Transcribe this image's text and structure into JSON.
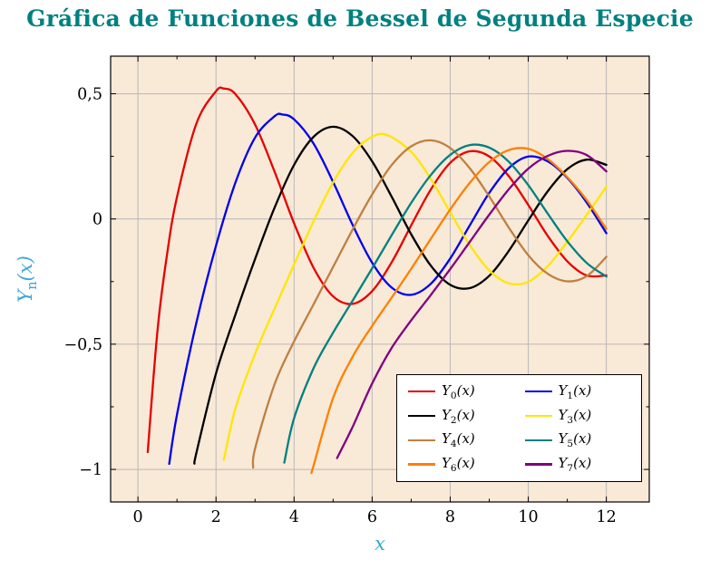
{
  "title": "Gráfica de Funciones de Bessel de Segunda Especie",
  "colors": {
    "title": "#008080",
    "axis_label": "#3fa7d6",
    "plot_background": "#f9e9d7",
    "grid": "#b8b8b8",
    "frame": "#000000",
    "legend_background": "#ffffff"
  },
  "chart_data": {
    "type": "line",
    "title": "Gráfica de Funciones de Bessel de Segunda Especie",
    "xlabel": "x",
    "ylabel": "Yn(x)",
    "ylabel_parts": {
      "base": "Y",
      "sub": "n",
      "arg": "(x)"
    },
    "xlim": [
      -0.7,
      13.1
    ],
    "ylim": [
      -1.13,
      0.65
    ],
    "grid": true,
    "legend_position": "bottom-right",
    "xticks": [
      {
        "value": 0,
        "label": "0"
      },
      {
        "value": 2,
        "label": "2"
      },
      {
        "value": 4,
        "label": "4"
      },
      {
        "value": 6,
        "label": "6"
      },
      {
        "value": 8,
        "label": "8"
      },
      {
        "value": 10,
        "label": "10"
      },
      {
        "value": 12,
        "label": "12"
      }
    ],
    "yticks": [
      {
        "value": 0.5,
        "label": "0,5"
      },
      {
        "value": 0,
        "label": "0"
      },
      {
        "value": -0.5,
        "label": "−0,5"
      },
      {
        "value": -1,
        "label": "−1"
      }
    ],
    "minor_xticks": [
      1,
      3,
      5,
      7,
      9,
      11
    ],
    "minor_yticks": [
      0.25,
      -0.25,
      -0.75
    ],
    "series": [
      {
        "name": "Y0(x)",
        "label_base": "Y",
        "label_sub": "0",
        "label_arg": "(x)",
        "color": "#e60000",
        "points": [
          [
            0.25,
            -0.931
          ],
          [
            0.5,
            -0.445
          ],
          [
            0.75,
            -0.137
          ],
          [
            1,
            0.088
          ],
          [
            1.5,
            0.382
          ],
          [
            2,
            0.51
          ],
          [
            2.2,
            0.521
          ],
          [
            2.5,
            0.498
          ],
          [
            3,
            0.377
          ],
          [
            3.5,
            0.189
          ],
          [
            4,
            -0.017
          ],
          [
            4.5,
            -0.195
          ],
          [
            5,
            -0.309
          ],
          [
            5.5,
            -0.339
          ],
          [
            6,
            -0.288
          ],
          [
            6.5,
            -0.173
          ],
          [
            7,
            -0.026
          ],
          [
            7.5,
            0.117
          ],
          [
            8,
            0.224
          ],
          [
            8.5,
            0.27
          ],
          [
            9,
            0.25
          ],
          [
            9.5,
            0.171
          ],
          [
            10,
            0.056
          ],
          [
            10.5,
            -0.068
          ],
          [
            11,
            -0.169
          ],
          [
            11.5,
            -0.226
          ],
          [
            12,
            -0.225
          ]
        ]
      },
      {
        "name": "Y1(x)",
        "label_base": "Y",
        "label_sub": "1",
        "label_arg": "(x)",
        "color": "#0000ee",
        "points": [
          [
            0.8,
            -0.978
          ],
          [
            1,
            -0.781
          ],
          [
            1.5,
            -0.412
          ],
          [
            2,
            -0.107
          ],
          [
            2.5,
            0.146
          ],
          [
            3,
            0.325
          ],
          [
            3.5,
            0.41
          ],
          [
            3.7,
            0.417
          ],
          [
            4,
            0.398
          ],
          [
            4.5,
            0.301
          ],
          [
            5,
            0.148
          ],
          [
            5.5,
            -0.024
          ],
          [
            6,
            -0.175
          ],
          [
            6.5,
            -0.274
          ],
          [
            7,
            -0.303
          ],
          [
            7.5,
            -0.259
          ],
          [
            8,
            -0.158
          ],
          [
            8.5,
            -0.026
          ],
          [
            9,
            0.104
          ],
          [
            9.5,
            0.203
          ],
          [
            10,
            0.249
          ],
          [
            10.5,
            0.23
          ],
          [
            11,
            0.164
          ],
          [
            11.5,
            0.065
          ],
          [
            12,
            -0.057
          ]
        ]
      },
      {
        "name": "Y2(x)",
        "label_base": "Y",
        "label_sub": "2",
        "label_arg": "(x)",
        "color": "#000000",
        "points": [
          [
            1.45,
            -0.977
          ],
          [
            1.5,
            -0.932
          ],
          [
            2,
            -0.617
          ],
          [
            2.5,
            -0.381
          ],
          [
            3,
            -0.16
          ],
          [
            3.5,
            0.045
          ],
          [
            4,
            0.216
          ],
          [
            4.5,
            0.328
          ],
          [
            5,
            0.368
          ],
          [
            5.5,
            0.331
          ],
          [
            6,
            0.23
          ],
          [
            6.5,
            0.089
          ],
          [
            7,
            -0.061
          ],
          [
            7.5,
            -0.186
          ],
          [
            8,
            -0.263
          ],
          [
            8.5,
            -0.276
          ],
          [
            9,
            -0.227
          ],
          [
            9.5,
            -0.128
          ],
          [
            10,
            -0.006
          ],
          [
            10.5,
            0.111
          ],
          [
            11,
            0.199
          ],
          [
            11.5,
            0.237
          ],
          [
            12,
            0.216
          ]
        ]
      },
      {
        "name": "Y3(x)",
        "label_base": "Y",
        "label_sub": "3",
        "label_arg": "(x)",
        "color": "#ffe600",
        "points": [
          [
            2.2,
            -0.962
          ],
          [
            2.5,
            -0.756
          ],
          [
            3,
            -0.539
          ],
          [
            3.5,
            -0.358
          ],
          [
            4,
            -0.182
          ],
          [
            4.5,
            -0.009
          ],
          [
            5,
            0.146
          ],
          [
            5.5,
            0.264
          ],
          [
            6,
            0.328
          ],
          [
            6.4,
            0.334
          ],
          [
            7,
            0.268
          ],
          [
            7.5,
            0.16
          ],
          [
            8,
            0.027
          ],
          [
            8.5,
            -0.104
          ],
          [
            9,
            -0.205
          ],
          [
            9.5,
            -0.257
          ],
          [
            10,
            -0.251
          ],
          [
            10.5,
            -0.188
          ],
          [
            11,
            -0.091
          ],
          [
            11.5,
            0.017
          ],
          [
            12,
            0.129
          ]
        ]
      },
      {
        "name": "Y4(x)",
        "label_base": "Y",
        "label_sub": "4",
        "label_arg": "(x)",
        "color": "#bf8040",
        "points": [
          [
            2.95,
            -0.993
          ],
          [
            3,
            -0.917
          ],
          [
            3.5,
            -0.66
          ],
          [
            4,
            -0.489
          ],
          [
            4.5,
            -0.341
          ],
          [
            5,
            -0.192
          ],
          [
            5.5,
            -0.042
          ],
          [
            6,
            0.098
          ],
          [
            6.5,
            0.215
          ],
          [
            7,
            0.29
          ],
          [
            7.5,
            0.314
          ],
          [
            8,
            0.283
          ],
          [
            8.5,
            0.203
          ],
          [
            9,
            0.09
          ],
          [
            9.5,
            -0.034
          ],
          [
            10,
            -0.145
          ],
          [
            10.5,
            -0.219
          ],
          [
            11,
            -0.249
          ],
          [
            11.5,
            -0.228
          ],
          [
            12,
            -0.151
          ]
        ]
      },
      {
        "name": "Y5(x)",
        "label_base": "Y",
        "label_sub": "5",
        "label_arg": "(x)",
        "color": "#008080",
        "points": [
          [
            3.75,
            -0.973
          ],
          [
            4,
            -0.796
          ],
          [
            4.5,
            -0.596
          ],
          [
            5,
            -0.454
          ],
          [
            5.5,
            -0.326
          ],
          [
            6,
            -0.197
          ],
          [
            6.5,
            -0.065
          ],
          [
            7,
            0.064
          ],
          [
            7.5,
            0.175
          ],
          [
            8,
            0.256
          ],
          [
            8.5,
            0.295
          ],
          [
            9,
            0.285
          ],
          [
            9.5,
            0.229
          ],
          [
            10,
            0.135
          ],
          [
            10.5,
            0.021
          ],
          [
            11,
            -0.089
          ],
          [
            11.5,
            -0.176
          ],
          [
            12,
            -0.23
          ]
        ]
      },
      {
        "name": "Y6(x)",
        "label_base": "Y",
        "label_sub": "6",
        "label_arg": "(x)",
        "color": "#ff8000",
        "points": [
          [
            4.45,
            -1.01
          ],
          [
            4.5,
            -0.985
          ],
          [
            5,
            -0.715
          ],
          [
            5.5,
            -0.55
          ],
          [
            6,
            -0.427
          ],
          [
            6.5,
            -0.314
          ],
          [
            7,
            -0.199
          ],
          [
            7.5,
            -0.08
          ],
          [
            8,
            0.038
          ],
          [
            8.5,
            0.144
          ],
          [
            9,
            0.227
          ],
          [
            9.5,
            0.275
          ],
          [
            10,
            0.28
          ],
          [
            10.5,
            0.239
          ],
          [
            11,
            0.167
          ],
          [
            11.5,
            0.075
          ],
          [
            12,
            -0.04
          ]
        ]
      },
      {
        "name": "Y7(x)",
        "label_base": "Y",
        "label_sub": "7",
        "label_arg": "(x)",
        "color": "#800080",
        "points": [
          [
            5.1,
            -0.955
          ],
          [
            5.5,
            -0.83
          ],
          [
            6,
            -0.657
          ],
          [
            6.5,
            -0.515
          ],
          [
            7,
            -0.405
          ],
          [
            7.5,
            -0.304
          ],
          [
            8,
            -0.2
          ],
          [
            8.5,
            -0.092
          ],
          [
            9,
            0.017
          ],
          [
            9.5,
            0.118
          ],
          [
            10,
            0.201
          ],
          [
            10.5,
            0.252
          ],
          [
            11,
            0.272
          ],
          [
            11.5,
            0.255
          ],
          [
            12,
            0.19
          ]
        ]
      }
    ]
  }
}
